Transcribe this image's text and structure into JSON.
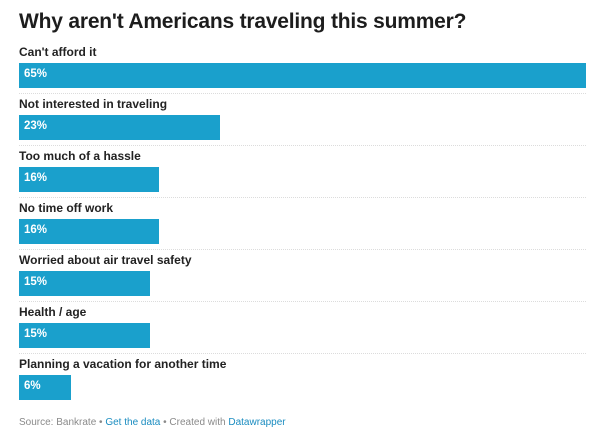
{
  "chart_data": {
    "type": "bar",
    "orientation": "horizontal",
    "title": "Why aren't Americans traveling this summer?",
    "categories": [
      "Can't afford it",
      "Not interested in traveling",
      "Too much of a hassle",
      "No time off work",
      "Worried about air travel safety",
      "Health / age",
      "Planning a vacation for another time"
    ],
    "values": [
      65,
      23,
      16,
      16,
      15,
      15,
      6
    ],
    "value_labels": [
      "65%",
      "23%",
      "16%",
      "16%",
      "15%",
      "15%",
      "6%"
    ],
    "xlim": [
      0,
      65
    ],
    "grid": false,
    "legend": null,
    "bar_color": "#1aa0cc"
  },
  "footer": {
    "source": "Source: Bankrate",
    "sep1": " • ",
    "get_data": "Get the data",
    "sep2": " • Created with ",
    "tool": "Datawrapper"
  }
}
